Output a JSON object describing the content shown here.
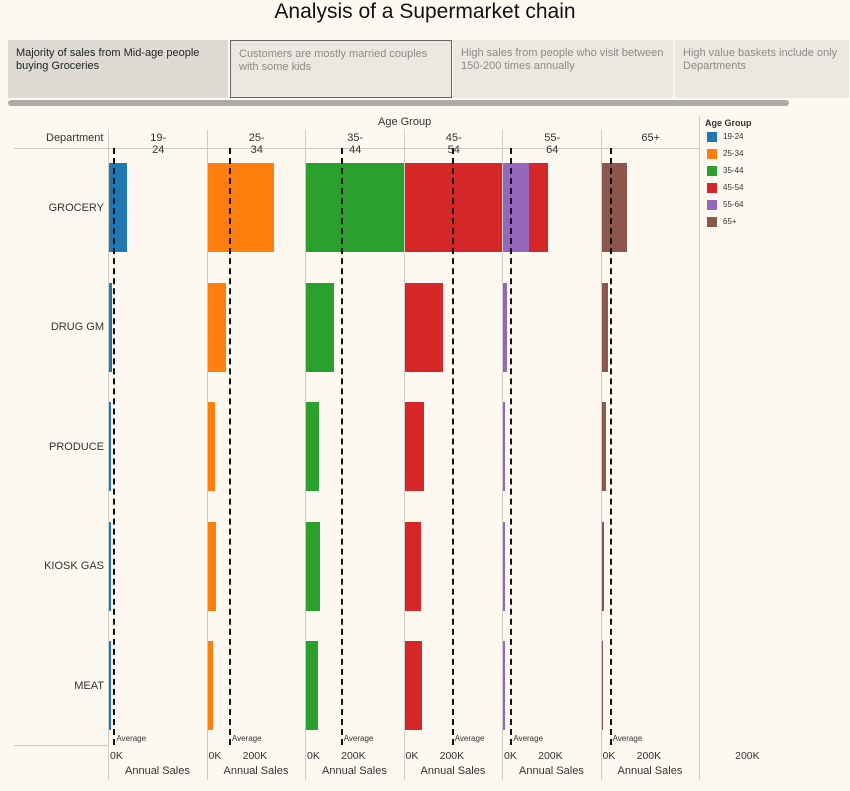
{
  "title": "Analysis of a Supermarket chain",
  "story_points": [
    {
      "text": "Majority of sales from Mid-age people buying Groceries",
      "state": "active"
    },
    {
      "text": "Customers are mostly married couples with some kids",
      "state": "selected"
    },
    {
      "text": "High sales from people who visit between 150-200 times annually",
      "state": "normal"
    },
    {
      "text": "High value baskets include only Departments",
      "state": "normal"
    }
  ],
  "chart_data": {
    "type": "bar",
    "orientation": "horizontal",
    "column_header": "Age Group",
    "row_header": "Department",
    "departments": [
      "GROCERY",
      "DRUG GM",
      "PRODUCE",
      "KIOSK GAS",
      "MEAT"
    ],
    "age_groups": [
      "19-24",
      "25-34",
      "35-44",
      "45-54",
      "55-64",
      "65+"
    ],
    "colors": {
      "19-24": "#1f77b4",
      "25-34": "#ff7f0e",
      "35-44": "#2ca02c",
      "45-54": "#d62728",
      "55-64": "#9467bd",
      "65+": "#8c564b"
    },
    "values": {
      "19-24": [
        25000,
        4000,
        0,
        1000,
        1000
      ],
      "25-34": [
        90000,
        25000,
        10000,
        12000,
        8000
      ],
      "35-44": [
        145000,
        38000,
        18000,
        19000,
        16000
      ],
      "45-54": [
        195000,
        52000,
        26000,
        23000,
        24000
      ],
      "55-64": [
        35000,
        6000,
        2000,
        3000,
        2000
      ],
      "65+": [
        35000,
        9000,
        6000,
        3000,
        2000
      ]
    },
    "averages": {
      "19-24": 6000,
      "25-34": 29000,
      "35-44": 47000,
      "45-54": 64000,
      "55-64": 10000,
      "65+": 11000
    },
    "average_label": "Average",
    "xlabel": "Annual Sales",
    "xticks": [
      "0K",
      "200K"
    ],
    "xlim": [
      0,
      210000
    ],
    "legend_title": "Age Group",
    "legend_position": "right"
  }
}
